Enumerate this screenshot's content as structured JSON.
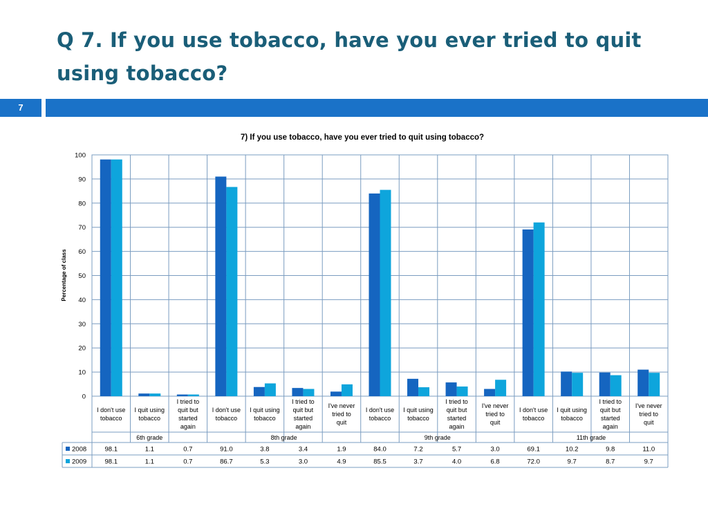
{
  "slide": {
    "title": "Q 7. If you use tobacco, have you ever tried to quit using tobacco?",
    "number": "7"
  },
  "colors": {
    "accent": "#1a72c8",
    "title": "#1a5e78",
    "series_2008": "#1565c0",
    "series_2009": "#0ea5dc"
  },
  "chart_data": {
    "type": "bar",
    "title": "7) If you use tobacco, have you ever tried to quit using tobacco?",
    "ylabel": "Percentage of class",
    "xlabel": "",
    "ylim": [
      0,
      100
    ],
    "yticks": [
      0,
      10,
      20,
      30,
      40,
      50,
      60,
      70,
      80,
      90,
      100
    ],
    "grid": true,
    "groups": [
      "6th grade",
      "8th grade",
      "9th grade",
      "11th grade"
    ],
    "categories": [
      [
        "I don't use",
        "tobacco"
      ],
      [
        "I quit using",
        "tobacco"
      ],
      [
        "I tried to",
        "quit but",
        "started",
        "again"
      ],
      [
        "I don't use",
        "tobacco"
      ],
      [
        "I quit using",
        "tobacco"
      ],
      [
        "I tried to",
        "quit but",
        "started",
        "again"
      ],
      [
        "I've never",
        "tried to",
        "quit"
      ],
      [
        "I don't use",
        "tobacco"
      ],
      [
        "I quit using",
        "tobacco"
      ],
      [
        "I tried to",
        "quit but",
        "started",
        "again"
      ],
      [
        "I've never",
        "tried to",
        "quit"
      ],
      [
        "I don't use",
        "tobacco"
      ],
      [
        "I quit using",
        "tobacco"
      ],
      [
        "I tried to",
        "quit but",
        "started",
        "again"
      ],
      [
        "I've never",
        "tried to",
        "quit"
      ]
    ],
    "category_group": [
      0,
      0,
      0,
      1,
      1,
      1,
      1,
      2,
      2,
      2,
      2,
      3,
      3,
      3,
      3
    ],
    "series": [
      {
        "name": "2008",
        "values": [
          98.1,
          1.1,
          0.7,
          91.0,
          3.8,
          3.4,
          1.9,
          84.0,
          7.2,
          5.7,
          3.0,
          69.1,
          10.2,
          9.8,
          11.0
        ]
      },
      {
        "name": "2009",
        "values": [
          98.1,
          1.1,
          0.7,
          86.7,
          5.3,
          3.0,
          4.9,
          85.5,
          3.7,
          4.0,
          6.8,
          72.0,
          9.7,
          8.7,
          9.7
        ]
      }
    ],
    "data_table": true
  }
}
